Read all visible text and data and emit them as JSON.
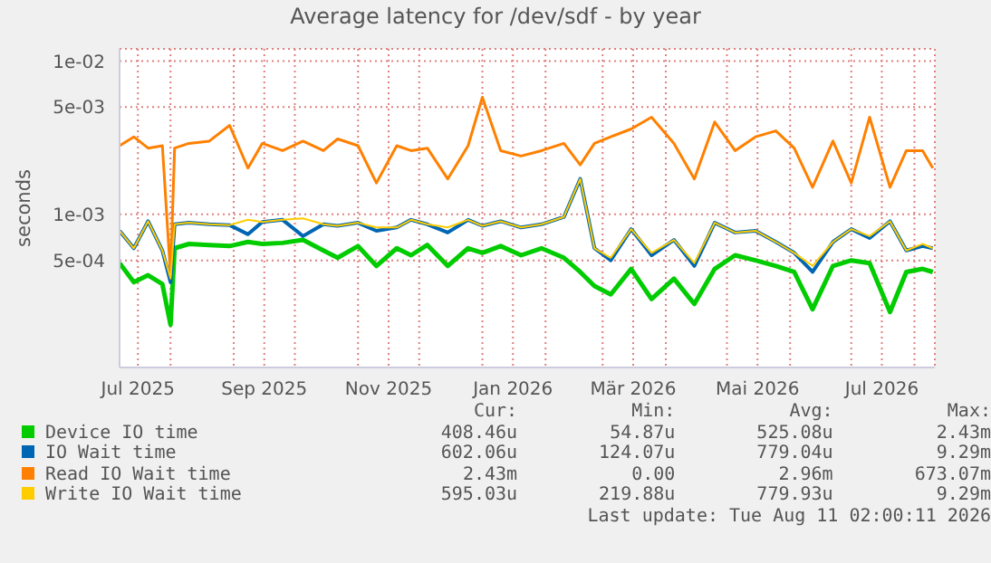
{
  "chart_data": {
    "type": "line",
    "title": "Average latency for /dev/sdf - by year",
    "ylabel": "seconds",
    "log": true,
    "grid": true,
    "legend": "bottom",
    "xlim": [
      "2025-07-07",
      "2026-08-11"
    ],
    "xticks": [
      {
        "value": "2025-07-16",
        "label": "Jul 2025"
      },
      {
        "value": "2025-08-01",
        "label": null
      },
      {
        "value": "2025-09-01",
        "label": null
      },
      {
        "value": "2025-09-16",
        "label": "Sep 2025"
      },
      {
        "value": "2025-10-01",
        "label": null
      },
      {
        "value": "2025-11-01",
        "label": null
      },
      {
        "value": "2025-11-16",
        "label": "Nov 2025"
      },
      {
        "value": "2025-12-01",
        "label": null
      },
      {
        "value": "2026-01-01",
        "label": null
      },
      {
        "value": "2026-01-16",
        "label": "Jan 2026"
      },
      {
        "value": "2026-02-01",
        "label": null
      },
      {
        "value": "2026-03-01",
        "label": null
      },
      {
        "value": "2026-03-16",
        "label": "Mär 2026"
      },
      {
        "value": "2026-04-01",
        "label": null
      },
      {
        "value": "2026-05-01",
        "label": null
      },
      {
        "value": "2026-05-16",
        "label": "Mai 2026"
      },
      {
        "value": "2026-06-01",
        "label": null
      },
      {
        "value": "2026-07-01",
        "label": null
      },
      {
        "value": "2026-07-16",
        "label": "Jul 2026"
      },
      {
        "value": "2026-08-01",
        "label": null
      }
    ],
    "ylim": [
      0.0001,
      0.012
    ],
    "yticks": [
      {
        "value": 0.0005,
        "label": "5e-04"
      },
      {
        "value": 0.001,
        "label": "1e-03"
      },
      {
        "value": 0.005,
        "label": "5e-03"
      },
      {
        "value": 0.01,
        "label": "1e-02"
      }
    ],
    "x": [
      "2025-07-07",
      "2025-07-14",
      "2025-07-21",
      "2025-07-28",
      "2025-08-01",
      "2025-08-03",
      "2025-08-10",
      "2025-08-20",
      "2025-08-30",
      "2025-09-08",
      "2025-09-15",
      "2025-09-25",
      "2025-10-05",
      "2025-10-15",
      "2025-10-22",
      "2025-11-01",
      "2025-11-10",
      "2025-11-20",
      "2025-11-27",
      "2025-12-05",
      "2025-12-15",
      "2025-12-25",
      "2026-01-01",
      "2026-01-10",
      "2026-01-20",
      "2026-01-30",
      "2026-02-10",
      "2026-02-18",
      "2026-02-25",
      "2026-03-05",
      "2026-03-15",
      "2026-03-25",
      "2026-04-05",
      "2026-04-15",
      "2026-04-25",
      "2026-05-05",
      "2026-05-15",
      "2026-05-25",
      "2026-06-03",
      "2026-06-12",
      "2026-06-22",
      "2026-07-01",
      "2026-07-10",
      "2026-07-20",
      "2026-07-28",
      "2026-08-05",
      "2026-08-10"
    ],
    "series": [
      {
        "name": "Device IO time",
        "color": "#00cc00",
        "values": [
          0.00048,
          0.00036,
          0.0004,
          0.00035,
          0.00019,
          0.0006,
          0.00064,
          0.00063,
          0.00062,
          0.00066,
          0.00064,
          0.00065,
          0.00068,
          0.00058,
          0.00052,
          0.00062,
          0.00046,
          0.0006,
          0.00054,
          0.00063,
          0.00046,
          0.0006,
          0.00056,
          0.00062,
          0.00054,
          0.0006,
          0.00052,
          0.00042,
          0.00034,
          0.0003,
          0.00044,
          0.00028,
          0.00038,
          0.00026,
          0.00044,
          0.00054,
          0.0005,
          0.00046,
          0.00042,
          0.00024,
          0.00046,
          0.0005,
          0.00048,
          0.00023,
          0.00042,
          0.00044,
          0.00042
        ]
      },
      {
        "name": "IO Wait time",
        "color": "#0066b3",
        "values": [
          0.00078,
          0.0006,
          0.0009,
          0.00058,
          0.00036,
          0.00086,
          0.00088,
          0.00086,
          0.00085,
          0.00074,
          0.00089,
          0.00092,
          0.00072,
          0.00086,
          0.00084,
          0.00088,
          0.00078,
          0.00082,
          0.00092,
          0.00086,
          0.00076,
          0.00092,
          0.00084,
          0.0009,
          0.00082,
          0.00086,
          0.00096,
          0.0017,
          0.0006,
          0.0005,
          0.0008,
          0.00054,
          0.00068,
          0.00046,
          0.00088,
          0.00076,
          0.00078,
          0.00066,
          0.00056,
          0.00042,
          0.00066,
          0.0008,
          0.0007,
          0.0009,
          0.00058,
          0.00062,
          0.0006
        ]
      },
      {
        "name": "Read IO Wait time",
        "color": "#ff8000",
        "values": [
          0.0028,
          0.0032,
          0.0027,
          0.0028,
          0.0004,
          0.0027,
          0.0029,
          0.003,
          0.0038,
          0.002,
          0.0029,
          0.0026,
          0.003,
          0.0026,
          0.0031,
          0.0028,
          0.0016,
          0.0028,
          0.0026,
          0.0027,
          0.0017,
          0.0028,
          0.0058,
          0.0026,
          0.0024,
          0.0026,
          0.0029,
          0.0021,
          0.0029,
          0.0032,
          0.0036,
          0.0043,
          0.0029,
          0.0017,
          0.004,
          0.0026,
          0.0032,
          0.0035,
          0.0027,
          0.0015,
          0.003,
          0.0016,
          0.0043,
          0.0015,
          0.0026,
          0.0026,
          0.002
        ]
      },
      {
        "name": "Write IO Wait time",
        "color": "#ffcc00",
        "values": [
          0.00078,
          0.0006,
          0.0009,
          0.00058,
          0.00038,
          0.00086,
          0.00088,
          0.00086,
          0.00085,
          0.00092,
          0.00089,
          0.00092,
          0.00094,
          0.00086,
          0.00084,
          0.00088,
          0.00082,
          0.00082,
          0.00092,
          0.00086,
          0.00082,
          0.00092,
          0.00084,
          0.0009,
          0.00082,
          0.00086,
          0.00096,
          0.0017,
          0.0006,
          0.00052,
          0.0008,
          0.00056,
          0.00068,
          0.00048,
          0.00088,
          0.00076,
          0.00078,
          0.00066,
          0.00056,
          0.00046,
          0.00066,
          0.0008,
          0.00072,
          0.0009,
          0.00058,
          0.00064,
          0.0006
        ]
      }
    ],
    "annotations": [
      "Cur:",
      "Min:",
      "Avg:",
      "Max:",
      "408.46u",
      "54.87u",
      "525.08u",
      "2.43m",
      "602.06u",
      "124.07u",
      "779.04u",
      "9.29m",
      "2.43m",
      "0.00",
      "2.96m",
      "673.07m",
      "595.03u",
      "219.88u",
      "779.93u",
      "9.29m",
      "Last update: Tue Aug 11 02:00:11 2026"
    ]
  }
}
